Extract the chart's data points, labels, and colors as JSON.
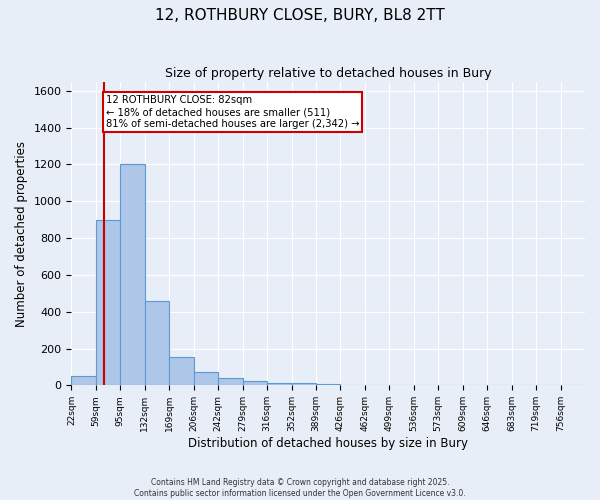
{
  "title_line1": "12, ROTHBURY CLOSE, BURY, BL8 2TT",
  "title_line2": "Size of property relative to detached houses in Bury",
  "xlabel": "Distribution of detached houses by size in Bury",
  "ylabel": "Number of detached properties",
  "bin_labels": [
    "22sqm",
    "59sqm",
    "95sqm",
    "132sqm",
    "169sqm",
    "206sqm",
    "242sqm",
    "279sqm",
    "316sqm",
    "352sqm",
    "389sqm",
    "426sqm",
    "462sqm",
    "499sqm",
    "536sqm",
    "573sqm",
    "609sqm",
    "646sqm",
    "683sqm",
    "719sqm",
    "756sqm"
  ],
  "values": [
    50,
    900,
    1200,
    460,
    155,
    70,
    40,
    25,
    15,
    15,
    5,
    0,
    0,
    0,
    0,
    0,
    0,
    0,
    0,
    0,
    0
  ],
  "bar_color": "#aec6e8",
  "bar_edge_color": "#5b9bd5",
  "property_line_x": 1.35,
  "property_line_color": "#cc0000",
  "annotation_text": "12 ROTHBURY CLOSE: 82sqm\n← 18% of detached houses are smaller (511)\n81% of semi-detached houses are larger (2,342) →",
  "annotation_box_color": "#ffffff",
  "annotation_box_edge_color": "#cc0000",
  "ylim": [
    0,
    1650
  ],
  "yticks": [
    0,
    200,
    400,
    600,
    800,
    1000,
    1200,
    1400,
    1600
  ],
  "background_color": "#e8eef7",
  "grid_color": "#ffffff",
  "footer_line1": "Contains HM Land Registry data © Crown copyright and database right 2025.",
  "footer_line2": "Contains public sector information licensed under the Open Government Licence v3.0."
}
